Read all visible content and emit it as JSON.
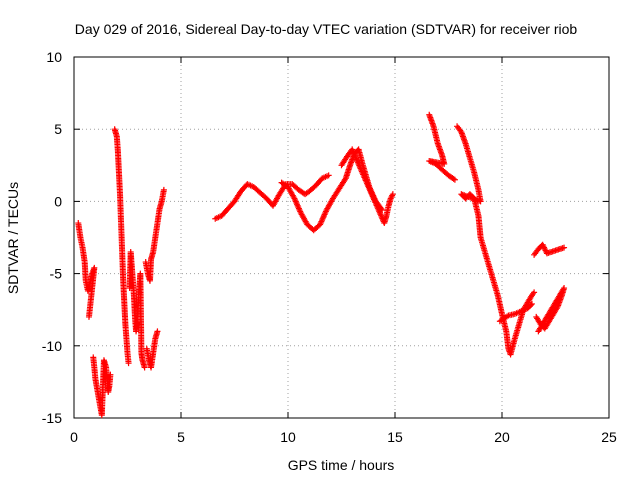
{
  "chart_data": {
    "type": "scatter",
    "title": "Day 029 of 2016, Sidereal Day-to-day VTEC variation (SDTVAR) for receiver riob",
    "xlabel": "GPS time / hours",
    "ylabel": "SDTVAR / TECUs",
    "xlim": [
      0,
      25
    ],
    "ylim": [
      -15,
      10
    ],
    "xticks": [
      0,
      5,
      10,
      15,
      20,
      25
    ],
    "yticks": [
      -15,
      -10,
      -5,
      0,
      5,
      10
    ],
    "grid": true,
    "marker": "plus",
    "series": [
      {
        "name": "SDTVAR",
        "color": "#ff0000",
        "segments": [
          [
            [
              0.2,
              -1.5
            ],
            [
              0.3,
              -2.5
            ],
            [
              0.4,
              -3.2
            ],
            [
              0.5,
              -4.2
            ],
            [
              0.55,
              -5.5
            ],
            [
              0.65,
              -6.2
            ],
            [
              0.75,
              -5.6
            ],
            [
              0.85,
              -5.0
            ],
            [
              0.95,
              -4.6
            ],
            [
              0.7,
              -8.0
            ]
          ],
          [
            [
              0.9,
              -10.8
            ],
            [
              0.95,
              -11.5
            ],
            [
              1.0,
              -12.3
            ],
            [
              1.3,
              -14.8
            ],
            [
              1.4,
              -11.0
            ],
            [
              1.5,
              -11.5
            ],
            [
              1.55,
              -12.5
            ],
            [
              1.6,
              -13.2
            ],
            [
              1.65,
              -12.8
            ],
            [
              1.7,
              -12.0
            ]
          ],
          [
            [
              1.9,
              5.0
            ],
            [
              2.0,
              4.5
            ],
            [
              2.05,
              3.5
            ],
            [
              2.1,
              2.0
            ],
            [
              2.15,
              0.5
            ],
            [
              2.2,
              -1.5
            ],
            [
              2.25,
              -3.5
            ],
            [
              2.3,
              -5.5
            ],
            [
              2.35,
              -7.0
            ],
            [
              2.4,
              -8.5
            ],
            [
              2.45,
              -9.5
            ],
            [
              2.5,
              -10.5
            ],
            [
              2.55,
              -11.2
            ]
          ],
          [
            [
              2.6,
              -6.0
            ],
            [
              2.65,
              -3.5
            ],
            [
              2.7,
              -4.5
            ],
            [
              2.75,
              -5.5
            ],
            [
              2.8,
              -6.5
            ],
            [
              2.85,
              -8.0
            ],
            [
              2.9,
              -9.0
            ],
            [
              2.95,
              -8.5
            ],
            [
              3.0,
              -7.0
            ],
            [
              3.05,
              -6.0
            ],
            [
              3.1,
              -5.0
            ],
            [
              3.15,
              -10.5
            ],
            [
              3.2,
              -11.0
            ],
            [
              3.3,
              -11.5
            ]
          ],
          [
            [
              3.35,
              -4.2
            ],
            [
              3.45,
              -5.0
            ],
            [
              3.55,
              -5.5
            ],
            [
              3.6,
              -4.0
            ],
            [
              3.7,
              -3.5
            ],
            [
              3.8,
              -2.5
            ],
            [
              3.9,
              -1.5
            ],
            [
              4.0,
              -0.5
            ],
            [
              4.1,
              0.0
            ],
            [
              4.2,
              0.8
            ]
          ],
          [
            [
              3.4,
              -10.2
            ],
            [
              3.5,
              -11.0
            ],
            [
              3.6,
              -11.5
            ],
            [
              3.7,
              -10.5
            ],
            [
              3.8,
              -9.5
            ],
            [
              3.9,
              -9.0
            ]
          ],
          [
            [
              6.6,
              -1.2
            ],
            [
              6.9,
              -1.0
            ],
            [
              7.2,
              -0.5
            ],
            [
              7.5,
              0.0
            ],
            [
              7.8,
              0.7
            ],
            [
              8.1,
              1.2
            ],
            [
              8.4,
              1.0
            ],
            [
              8.7,
              0.6
            ],
            [
              9.0,
              0.2
            ],
            [
              9.3,
              -0.3
            ],
            [
              9.6,
              0.5
            ],
            [
              9.9,
              1.2
            ],
            [
              10.2,
              1.2
            ],
            [
              10.5,
              0.8
            ],
            [
              10.8,
              0.5
            ],
            [
              11.0,
              0.7
            ],
            [
              11.3,
              1.1
            ],
            [
              11.6,
              1.6
            ],
            [
              11.9,
              1.8
            ]
          ],
          [
            [
              9.7,
              1.3
            ],
            [
              10.0,
              1.0
            ],
            [
              10.3,
              0.2
            ],
            [
              10.6,
              -0.8
            ],
            [
              10.9,
              -1.6
            ],
            [
              11.2,
              -2.0
            ],
            [
              11.5,
              -1.6
            ],
            [
              11.8,
              -0.6
            ],
            [
              12.1,
              0.2
            ],
            [
              12.4,
              0.9
            ],
            [
              12.7,
              1.6
            ],
            [
              12.9,
              2.5
            ],
            [
              13.1,
              3.3
            ],
            [
              13.3,
              3.6
            ],
            [
              13.5,
              2.5
            ],
            [
              13.8,
              1.0
            ],
            [
              14.1,
              0.0
            ],
            [
              14.4,
              -0.6
            ]
          ],
          [
            [
              12.5,
              2.5
            ],
            [
              12.8,
              3.2
            ],
            [
              13.0,
              3.6
            ],
            [
              14.5,
              -1.5
            ],
            [
              14.6,
              -1.0
            ],
            [
              14.7,
              -0.3
            ],
            [
              14.8,
              0.2
            ],
            [
              14.9,
              0.5
            ]
          ],
          [
            [
              16.6,
              6.0
            ],
            [
              16.8,
              5.2
            ],
            [
              17.0,
              4.0
            ],
            [
              17.2,
              3.2
            ],
            [
              17.3,
              2.6
            ],
            [
              16.6,
              2.8
            ],
            [
              16.9,
              2.6
            ],
            [
              17.2,
              2.2
            ],
            [
              17.5,
              1.8
            ],
            [
              17.8,
              1.5
            ]
          ],
          [
            [
              17.9,
              5.2
            ],
            [
              18.1,
              4.8
            ],
            [
              18.3,
              4.0
            ],
            [
              18.5,
              3.0
            ],
            [
              18.7,
              2.0
            ],
            [
              18.9,
              0.8
            ],
            [
              19.0,
              0.0
            ],
            [
              18.1,
              0.5
            ],
            [
              18.3,
              0.2
            ],
            [
              18.5,
              0.5
            ],
            [
              18.7,
              0.2
            ],
            [
              18.9,
              -1.0
            ],
            [
              19.0,
              -2.5
            ],
            [
              19.2,
              -3.5
            ],
            [
              19.4,
              -4.5
            ],
            [
              19.6,
              -5.5
            ],
            [
              19.8,
              -6.5
            ],
            [
              20.0,
              -7.8
            ],
            [
              20.2,
              -9.0
            ],
            [
              20.3,
              -10.2
            ],
            [
              20.4,
              -10.6
            ],
            [
              20.6,
              -9.5
            ],
            [
              20.8,
              -8.5
            ],
            [
              21.0,
              -7.5
            ],
            [
              21.2,
              -7.0
            ],
            [
              21.4,
              -6.5
            ],
            [
              21.5,
              -6.3
            ]
          ],
          [
            [
              19.9,
              -8.3
            ],
            [
              20.1,
              -8.1
            ],
            [
              20.3,
              -7.9
            ],
            [
              20.6,
              -7.8
            ],
            [
              20.9,
              -7.6
            ],
            [
              21.2,
              -7.4
            ],
            [
              21.4,
              -7.1
            ]
          ],
          [
            [
              21.5,
              -3.7
            ],
            [
              21.7,
              -3.3
            ],
            [
              21.9,
              -3.0
            ],
            [
              22.1,
              -3.6
            ],
            [
              22.3,
              -3.5
            ],
            [
              22.5,
              -3.4
            ],
            [
              22.7,
              -3.3
            ],
            [
              22.9,
              -3.2
            ]
          ],
          [
            [
              21.6,
              -8.0
            ],
            [
              21.8,
              -8.5
            ],
            [
              22.0,
              -8.8
            ],
            [
              22.2,
              -8.3
            ],
            [
              22.4,
              -7.8
            ],
            [
              22.6,
              -7.3
            ],
            [
              22.8,
              -6.5
            ],
            [
              22.9,
              -6.0
            ],
            [
              21.7,
              -9.0
            ]
          ]
        ]
      }
    ]
  }
}
